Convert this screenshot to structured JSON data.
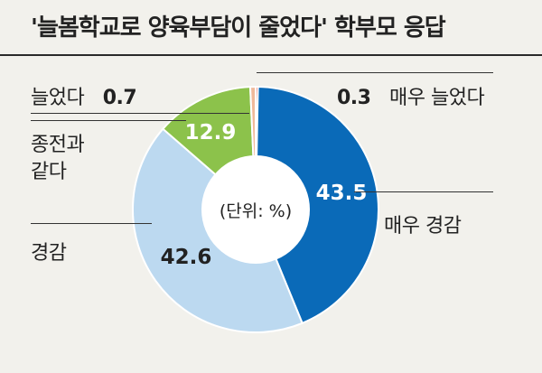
{
  "title": "'늘봄학교로 양육부담이 줄었다' 학부모 응답",
  "chart_data": {
    "type": "pie",
    "donut": true,
    "center_label": "(단위: %)",
    "slices": [
      {
        "label": "매우 늘었다",
        "value": 0.3,
        "color": "#d9433b"
      },
      {
        "label": "매우 경감",
        "value": 43.5,
        "color": "#0a6ab8"
      },
      {
        "label": "경감",
        "value": 42.6,
        "color": "#bcd9f0"
      },
      {
        "label": "종전과 같다",
        "value": 12.9,
        "color": "#8cc24b"
      },
      {
        "label": "늘었다",
        "value": 0.7,
        "color": "#f0b99a"
      }
    ]
  },
  "labels": {
    "increased": "늘었다",
    "increased_value": "0.7",
    "much_increased": "매우 늘었다",
    "much_increased_value": "0.3",
    "same_line1": "종전과",
    "same_line2": "같다",
    "reduced": "경감",
    "much_reduced": "매우 경감"
  }
}
